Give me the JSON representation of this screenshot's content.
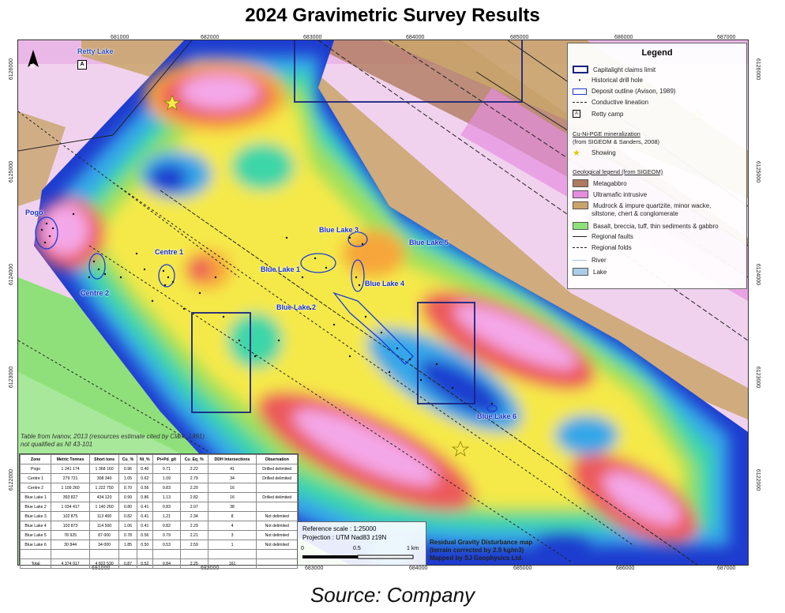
{
  "title": "2024 Gravimetric Survey Results",
  "source": "Source: Company",
  "top_ticks": [
    "681000",
    "682000",
    "683000",
    "684000",
    "685000",
    "686000",
    "687000"
  ],
  "bottom_ticks": [
    "681000",
    "682000",
    "683000",
    "684000",
    "685000",
    "686000",
    "687000"
  ],
  "left_ticks": [
    "6126000",
    "6125000",
    "6124000",
    "6123000",
    "6122000"
  ],
  "right_ticks": [
    "6126000",
    "6125000",
    "6124000",
    "6123000",
    "6122000"
  ],
  "place_labels": {
    "retty_lake": "Retty Lake",
    "pogo": "Pogo",
    "centre1": "Centre 1",
    "centre2": "Centre 2",
    "bl1": "Blue Lake 1",
    "bl2": "Blue Lake 2",
    "bl3": "Blue Lake 3",
    "bl4": "Blue Lake 4",
    "bl5": "Blue Lake 5",
    "bl6": "Blue Lake 6",
    "north": "N",
    "camp": "A"
  },
  "legend": {
    "title": "Legend",
    "claims": "Capitalight claims limit",
    "drill": "Historical drill hole",
    "deposit": "Deposit outline (Avison, 1989)",
    "conductive": "Conductive lineation",
    "camp": "Retty camp",
    "mineral_head": "Cu-Ni-PGE mineralization",
    "mineral_head2": "(from SIGEOM & Sanders, 2008)",
    "showing": "Showing",
    "geo_head": "Geological legend (from SIGEOM)",
    "metagabbro": "Metagabbro",
    "ultramafic": "Ultramafic intrusive",
    "mudrock": "Mudrock & impure quartzite, minor wacke,",
    "mudrock2": "siltstone, chert & conglomerate",
    "basalt": "Basalt, breccia, tuff, thin sediments & gabbro",
    "faults": "Regional faults",
    "folds": "Regional folds",
    "river": "River",
    "lake": "Lake",
    "colors": {
      "metagabbro": "#b07a5e",
      "ultramafic": "#e58ee0",
      "mudrock": "#c9a46a",
      "basalt": "#8fe07a",
      "lake": "#a9cde8",
      "claims": "#1a237e"
    }
  },
  "table_note": [
    "Table from Ivanov, 2013 (resources estimate cited by Clark, 1991)",
    "not qualified as NI 43-101"
  ],
  "table": {
    "headers": [
      "Zone",
      "Metric Tonnes",
      "Short tons",
      "Cu_%",
      "Ni_%",
      "Pt+Pd_g/t",
      "Cu_Eq_%",
      "DDH Intersections",
      "Observation"
    ],
    "rows": [
      [
        "Pogo",
        "1 241 174",
        "1 368 160",
        "0.96",
        "0.40",
        "0.71",
        "2.22",
        "41",
        "Drilled delimited"
      ],
      [
        "Centre 1",
        "279 721",
        "308 340",
        "1.05",
        "0.62",
        "1.09",
        "2.79",
        "34",
        "Drilled delimited"
      ],
      [
        "Centre 2",
        "1 109 260",
        "1 222 750",
        "0.70",
        "0.56",
        "0.83",
        "2.20",
        "16",
        ""
      ],
      [
        "Blue Lake 1",
        "393 827",
        "434 120",
        "0.99",
        "0.86",
        "1.13",
        "2.82",
        "16",
        "Drilled delimited"
      ],
      [
        "Blue Lake 2",
        "1 034 417",
        "1 140 260",
        "0.80",
        "0.41",
        "0.83",
        "2.07",
        "38",
        ""
      ],
      [
        "Blue Lake 3",
        "102 875",
        "113 400",
        "0.82",
        "0.41",
        "1.21",
        "2.34",
        "8",
        "Not delimited"
      ],
      [
        "Blue Lake 4",
        "103 873",
        "114 500",
        "1.06",
        "0.41",
        "0.82",
        "2.29",
        "4",
        "Not delimited"
      ],
      [
        "Blue Lake 5",
        "78 925",
        "87 000",
        "0.78",
        "0.56",
        "0.79",
        "2.21",
        "3",
        "Not delimited"
      ],
      [
        "Blue Lake 6",
        "30 844",
        "34 000",
        "1.85",
        "0.50",
        "0.53",
        "2.59",
        "1",
        "Not delimited"
      ],
      [
        "",
        "",
        "",
        "",
        "",
        "",
        "",
        "",
        ""
      ],
      [
        "Total",
        "4 374 917",
        "4 822 530",
        "0.87",
        "0.52",
        "0.84",
        "2.25",
        "161",
        ""
      ]
    ]
  },
  "scale": {
    "ref": "Reference scale : 1:25000",
    "proj": "Projection : UTM Nad83 z19N",
    "zero": "0",
    "half": "0.5",
    "one": "1 km"
  },
  "map_info": [
    "Residual Gravity Disturbance map",
    "(terrain corrected by 2.9 kg/m3)",
    "Mapped by SJ Geophysics Ltd."
  ]
}
